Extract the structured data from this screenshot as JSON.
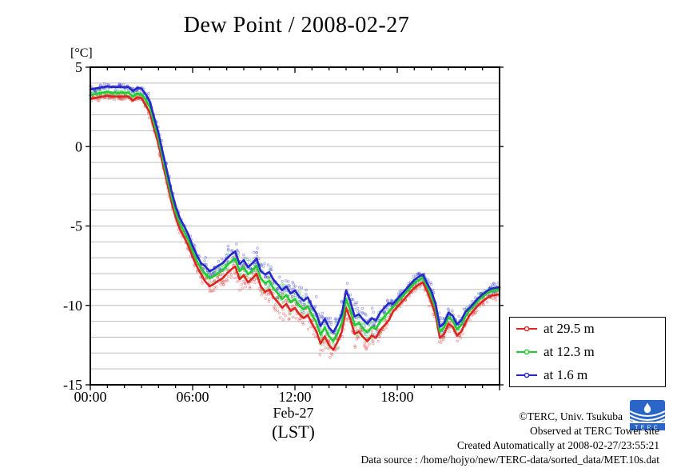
{
  "title": "Dew Point / 2008-02-27",
  "y_unit_label": "[°C]",
  "x_axis": {
    "date_label": "Feb-27",
    "timezone_label": "(LST)",
    "major_ticks": [
      {
        "hour": 0,
        "label": "00:00"
      },
      {
        "hour": 6,
        "label": "06:00"
      },
      {
        "hour": 12,
        "label": "12:00"
      },
      {
        "hour": 18,
        "label": "18:00"
      }
    ],
    "minor_tick_step_hours": 1,
    "range_hours": [
      0,
      24
    ]
  },
  "y_axis": {
    "range": [
      -15,
      5
    ],
    "major_tick_step": 5,
    "grid_step": 1,
    "major_tick_labels": [
      "5",
      "0",
      "-5",
      "-10",
      "-15"
    ]
  },
  "legend": {
    "items": [
      {
        "label": "at 29.5 m",
        "color": "#e02424"
      },
      {
        "label": "at 12.3 m",
        "color": "#22cc33"
      },
      {
        "label": "at 1.6 m",
        "color": "#2727cc"
      }
    ]
  },
  "footer": {
    "line1": "©TERC, Univ. Tsukuba",
    "line2": "Observed at TERC Tower site",
    "line3": "Created Automatically at 2008-02-27/23:55:21",
    "line4": "Data source : /home/hojyo/new/TERC-data/sorted_data/MET.10s.dat",
    "logo_text": "TERC"
  },
  "chart_data": {
    "type": "line",
    "title": "Dew Point / 2008-02-27",
    "xlabel": "Feb-27 (LST)",
    "ylabel": "[°C]",
    "xlim": [
      0,
      24
    ],
    "ylim": [
      -15,
      5
    ],
    "grid": "horizontal every 1 degree, light gray",
    "legend_position": "outside right, lower",
    "x_hours": [
      0,
      0.25,
      0.5,
      0.75,
      1,
      1.25,
      1.5,
      1.75,
      2,
      2.25,
      2.5,
      2.75,
      3,
      3.25,
      3.5,
      3.75,
      4,
      4.25,
      4.5,
      4.75,
      5,
      5.25,
      5.5,
      5.75,
      6,
      6.25,
      6.5,
      6.75,
      7,
      7.25,
      7.5,
      7.75,
      8,
      8.25,
      8.5,
      8.75,
      9,
      9.25,
      9.5,
      9.75,
      10,
      10.25,
      10.5,
      10.75,
      11,
      11.25,
      11.5,
      11.75,
      12,
      12.25,
      12.5,
      12.75,
      13,
      13.25,
      13.5,
      13.75,
      14,
      14.25,
      14.5,
      14.75,
      15,
      15.25,
      15.5,
      15.75,
      16,
      16.25,
      16.5,
      16.75,
      17,
      17.25,
      17.5,
      17.75,
      18,
      18.25,
      18.5,
      18.75,
      19,
      19.25,
      19.5,
      19.75,
      20,
      20.25,
      20.5,
      20.75,
      21,
      21.25,
      21.5,
      21.75,
      22,
      22.25,
      22.5,
      22.75,
      23,
      23.25,
      23.5,
      23.75,
      24
    ],
    "series": [
      {
        "name": "at 29.5 m",
        "height_m": 29.5,
        "color": "#e02424",
        "values": [
          3.0,
          3.05,
          3.1,
          3.15,
          3.2,
          3.15,
          3.15,
          3.15,
          3.15,
          3.15,
          2.9,
          3.1,
          3.05,
          2.6,
          2.1,
          1.1,
          0.15,
          -1.1,
          -2.25,
          -3.45,
          -4.45,
          -5.2,
          -5.7,
          -6.25,
          -6.95,
          -7.55,
          -8.05,
          -8.5,
          -8.8,
          -8.65,
          -8.45,
          -8.3,
          -8.0,
          -7.75,
          -7.55,
          -8.35,
          -8.1,
          -8.55,
          -8.3,
          -8.0,
          -8.8,
          -9.15,
          -9.0,
          -9.5,
          -9.8,
          -10.15,
          -9.9,
          -10.35,
          -10.15,
          -10.55,
          -10.8,
          -10.6,
          -11.15,
          -11.6,
          -12.4,
          -11.95,
          -12.5,
          -12.8,
          -12.3,
          -11.65,
          -10.15,
          -10.85,
          -11.8,
          -11.65,
          -12.0,
          -12.25,
          -11.9,
          -12.05,
          -11.55,
          -11.25,
          -10.95,
          -10.4,
          -10.1,
          -9.8,
          -9.5,
          -9.2,
          -8.9,
          -8.7,
          -8.55,
          -9.1,
          -9.8,
          -10.6,
          -12.05,
          -11.8,
          -11.15,
          -11.35,
          -11.9,
          -11.65,
          -11.1,
          -10.6,
          -10.3,
          -10.0,
          -9.75,
          -9.55,
          -9.4,
          -9.35,
          -9.3
        ]
      },
      {
        "name": "at 12.3 m",
        "height_m": 12.3,
        "color": "#22cc33",
        "values": [
          3.25,
          3.3,
          3.35,
          3.4,
          3.45,
          3.4,
          3.4,
          3.4,
          3.4,
          3.4,
          3.15,
          3.35,
          3.3,
          2.95,
          2.45,
          1.45,
          0.5,
          -0.75,
          -1.9,
          -3.1,
          -4.1,
          -4.85,
          -5.35,
          -5.9,
          -6.6,
          -7.2,
          -7.7,
          -8.0,
          -8.3,
          -8.15,
          -7.95,
          -7.8,
          -7.5,
          -7.25,
          -7.05,
          -7.85,
          -7.6,
          -8.05,
          -7.8,
          -7.5,
          -8.3,
          -8.6,
          -8.45,
          -8.95,
          -9.25,
          -9.6,
          -9.35,
          -9.8,
          -9.6,
          -10.0,
          -10.25,
          -10.05,
          -10.6,
          -11.05,
          -11.85,
          -11.4,
          -11.95,
          -12.25,
          -11.75,
          -11.1,
          -9.6,
          -10.3,
          -11.25,
          -11.1,
          -11.45,
          -11.7,
          -11.35,
          -11.5,
          -11.0,
          -10.7,
          -10.4,
          -10.1,
          -9.8,
          -9.5,
          -9.2,
          -8.9,
          -8.6,
          -8.4,
          -8.25,
          -8.8,
          -9.4,
          -10.2,
          -11.65,
          -11.4,
          -10.75,
          -10.95,
          -11.5,
          -11.25,
          -10.7,
          -10.3,
          -10.0,
          -9.7,
          -9.45,
          -9.25,
          -9.1,
          -9.05,
          -9.0
        ]
      },
      {
        "name": "at 1.6 m",
        "height_m": 1.6,
        "color": "#2727cc",
        "values": [
          3.6,
          3.65,
          3.7,
          3.75,
          3.8,
          3.75,
          3.75,
          3.75,
          3.75,
          3.75,
          3.5,
          3.7,
          3.65,
          3.3,
          2.8,
          1.8,
          0.85,
          -0.4,
          -1.55,
          -2.75,
          -3.75,
          -4.5,
          -5.0,
          -5.55,
          -6.25,
          -6.85,
          -7.35,
          -7.55,
          -7.85,
          -7.7,
          -7.5,
          -7.35,
          -7.05,
          -6.8,
          -6.6,
          -7.4,
          -7.15,
          -7.6,
          -7.35,
          -7.05,
          -7.85,
          -8.05,
          -7.9,
          -8.4,
          -8.7,
          -9.05,
          -8.8,
          -9.25,
          -9.05,
          -9.45,
          -9.7,
          -9.5,
          -10.05,
          -10.5,
          -11.3,
          -10.85,
          -11.4,
          -11.7,
          -11.2,
          -10.55,
          -9.05,
          -9.75,
          -10.7,
          -10.55,
          -10.9,
          -11.15,
          -10.8,
          -10.95,
          -10.45,
          -10.15,
          -9.85,
          -9.9,
          -9.6,
          -9.3,
          -9.0,
          -8.7,
          -8.4,
          -8.2,
          -8.05,
          -8.6,
          -9.1,
          -9.9,
          -11.35,
          -11.1,
          -10.45,
          -10.65,
          -11.2,
          -10.95,
          -10.4,
          -10.15,
          -9.85,
          -9.55,
          -9.3,
          -9.1,
          -8.95,
          -8.9,
          -8.85
        ]
      }
    ]
  }
}
